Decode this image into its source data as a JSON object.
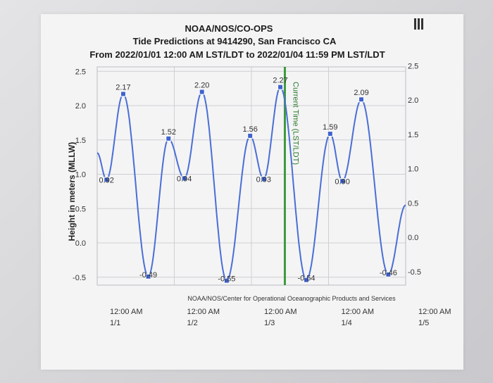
{
  "header": {
    "org": "NOAA/NOS/CO-OPS",
    "station": "Tide Predictions at 9414290, San Francisco CA",
    "range": "From 2022/01/01 12:00 AM LST/LDT to 2022/01/04 11:59 PM LST/LDT"
  },
  "chart_data": {
    "type": "line",
    "ylabel": "Height in meters (MLLW)",
    "ylim": [
      -0.6,
      2.55
    ],
    "xlim": [
      0,
      96
    ],
    "y_ticks_left": [
      "2.5",
      "2.0",
      "1.5",
      "1.0",
      "0.5",
      "0.0",
      "-0.5"
    ],
    "y_ticks_right": [
      "2.5",
      "2.0",
      "1.5",
      "1.0",
      "0.5",
      "0.0",
      "-0.5"
    ],
    "x_ticks": [
      {
        "hour": 0,
        "line1": "12:00 AM",
        "line2": "1/1"
      },
      {
        "hour": 24,
        "line1": "12:00 AM",
        "line2": "1/2"
      },
      {
        "hour": 48,
        "line1": "12:00 AM",
        "line2": "1/3"
      },
      {
        "hour": 72,
        "line1": "12:00 AM",
        "line2": "1/4"
      },
      {
        "hour": 96,
        "line1": "12:00 AM",
        "line2": "1/5"
      }
    ],
    "extremes": [
      {
        "hour": 2.9,
        "value": 0.92,
        "label": "0.92"
      },
      {
        "hour": 8.1,
        "value": 2.17,
        "label": "2.17"
      },
      {
        "hour": 15.9,
        "value": -0.49,
        "label": "-0.49"
      },
      {
        "hour": 22.2,
        "value": 1.52,
        "label": "1.52"
      },
      {
        "hour": 27.1,
        "value": 0.94,
        "label": "0.94"
      },
      {
        "hour": 32.6,
        "value": 2.2,
        "label": "2.20"
      },
      {
        "hour": 40.3,
        "value": -0.55,
        "label": "-0.55"
      },
      {
        "hour": 47.6,
        "value": 1.56,
        "label": "1.56"
      },
      {
        "hour": 51.8,
        "value": 0.93,
        "label": "0.93"
      },
      {
        "hour": 57.0,
        "value": 2.27,
        "label": "2.27"
      },
      {
        "hour": 65.1,
        "value": -0.54,
        "label": "-0.54"
      },
      {
        "hour": 72.5,
        "value": 1.59,
        "label": "1.59"
      },
      {
        "hour": 76.3,
        "value": 0.9,
        "label": "0.90"
      },
      {
        "hour": 82.2,
        "value": 2.09,
        "label": "2.09"
      },
      {
        "hour": 90.6,
        "value": -0.46,
        "label": "-0.46"
      }
    ],
    "start": {
      "hour": 0,
      "value": 1.31
    },
    "end": {
      "hour": 96,
      "value": 0.55
    },
    "current_time_hour": 58.4,
    "current_time_label": "Current Time (LST/LDT)",
    "credit": "NOAA/NOS/Center for Operational Oceanographic Products and Services",
    "grid": true,
    "colors": {
      "line": "#4a6ed6",
      "marker": "#3f63cc",
      "current": "#3c9a3c",
      "grid": "#cfcfd3"
    }
  }
}
